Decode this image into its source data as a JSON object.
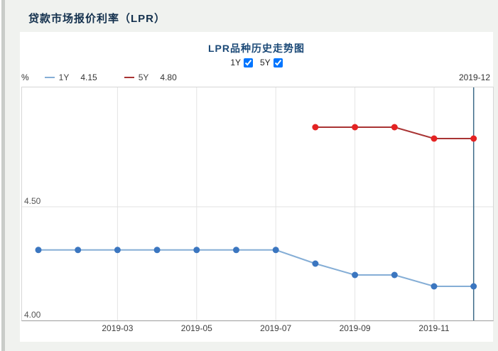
{
  "header": {
    "title": "贷款市场报价利率（LPR）"
  },
  "chart": {
    "title": "LPR品种历史走势图",
    "controls": [
      {
        "label": "1Y",
        "checked": true
      },
      {
        "label": "5Y",
        "checked": true
      }
    ],
    "unit_label": "%",
    "legend": [
      {
        "name": "1Y",
        "value": "4.15"
      },
      {
        "name": "5Y",
        "value": "4.80"
      }
    ],
    "current_date": "2019-12"
  },
  "chart_data": {
    "type": "line",
    "title": "LPR品种历史走势图",
    "x": [
      "2019-01",
      "2019-02",
      "2019-03",
      "2019-04",
      "2019-05",
      "2019-06",
      "2019-07",
      "2019-08",
      "2019-09",
      "2019-10",
      "2019-11",
      "2019-12"
    ],
    "series": [
      {
        "name": "1Y",
        "values": [
          4.31,
          4.31,
          4.31,
          4.31,
          4.31,
          4.31,
          4.31,
          4.25,
          4.2,
          4.2,
          4.15,
          4.15
        ],
        "line_color": "#85aed6",
        "point_color": "#3b76c0"
      },
      {
        "name": "5Y",
        "values": [
          null,
          null,
          null,
          null,
          null,
          null,
          null,
          4.85,
          4.85,
          4.85,
          4.8,
          4.8
        ],
        "line_color": "#a93434",
        "point_color": "#e42222"
      }
    ],
    "xticks": [
      "2019-03",
      "2019-05",
      "2019-07",
      "2019-09",
      "2019-11"
    ],
    "yticks": [
      4.5,
      4.0
    ],
    "ytick_labels": [
      "4.50",
      "4.00"
    ],
    "ylim": [
      4.0,
      5.025
    ],
    "ylabel": "%",
    "grid": true,
    "legend_position": "top-left",
    "indicator_x": "2019-12",
    "indicator_color": "#3e6b89",
    "grid_color": "#e3e3e3"
  }
}
